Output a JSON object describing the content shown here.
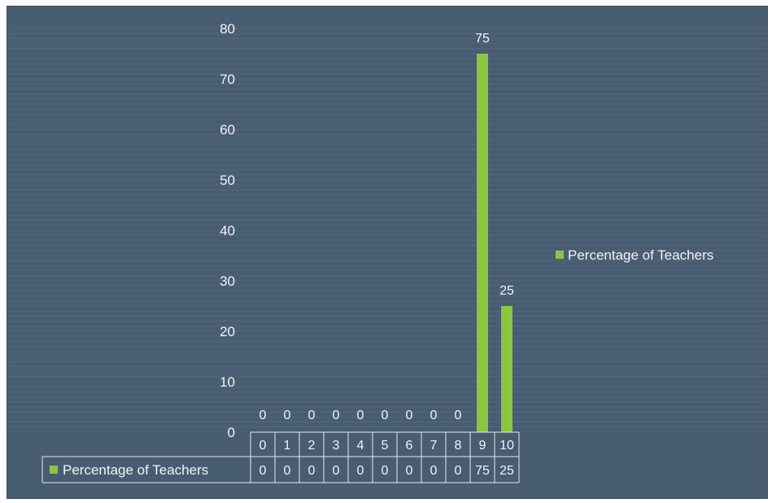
{
  "chart_data": {
    "type": "bar",
    "categories": [
      "0",
      "1",
      "2",
      "3",
      "4",
      "5",
      "6",
      "7",
      "8",
      "9",
      "10"
    ],
    "series": [
      {
        "name": "Percentage of Teachers",
        "values": [
          0,
          0,
          0,
          0,
          0,
          0,
          0,
          0,
          0,
          75,
          25
        ]
      }
    ],
    "yticks": [
      "0",
      "10",
      "20",
      "30",
      "40",
      "50",
      "60",
      "70",
      "80"
    ],
    "ylim": [
      0,
      80
    ],
    "grid": true,
    "legend": "right",
    "data_table": true,
    "colors": {
      "background": "#485c72",
      "bar": "#8cc63f",
      "text": "#f2f4f6",
      "grid": "#62758a",
      "table_line": "#e6e9ee"
    }
  }
}
